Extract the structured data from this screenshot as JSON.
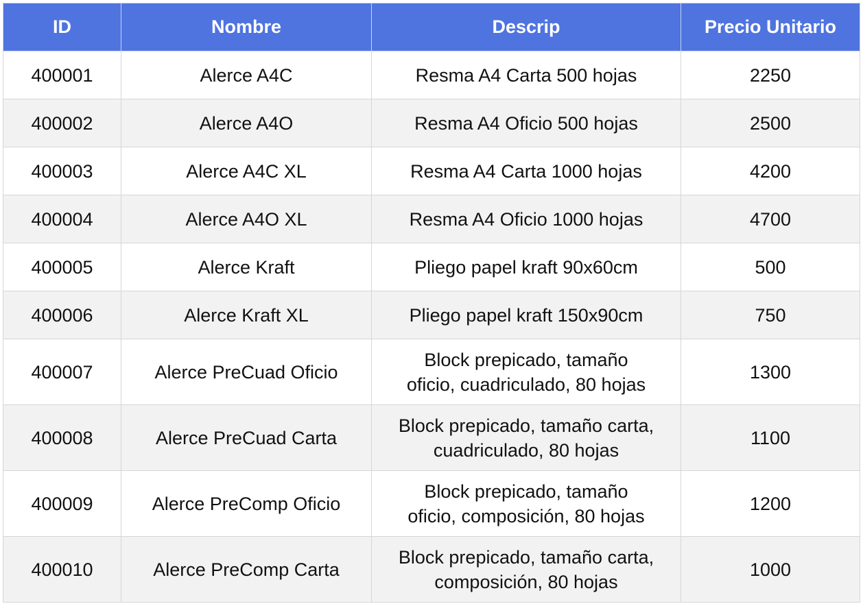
{
  "table": {
    "headers": [
      "ID",
      "Nombre",
      "Descrip",
      "Precio Unitario"
    ],
    "rows": [
      {
        "id": "400001",
        "nombre": "Alerce A4C",
        "descrip": "Resma A4 Carta 500 hojas",
        "precio": "2250"
      },
      {
        "id": "400002",
        "nombre": "Alerce A4O",
        "descrip": "Resma A4 Oficio 500 hojas",
        "precio": "2500"
      },
      {
        "id": "400003",
        "nombre": "Alerce A4C XL",
        "descrip": "Resma A4 Carta 1000 hojas",
        "precio": "4200"
      },
      {
        "id": "400004",
        "nombre": "Alerce A4O XL",
        "descrip": "Resma A4 Oficio 1000 hojas",
        "precio": "4700"
      },
      {
        "id": "400005",
        "nombre": "Alerce Kraft",
        "descrip": "Pliego papel kraft 90x60cm",
        "precio": "500"
      },
      {
        "id": "400006",
        "nombre": "Alerce Kraft XL",
        "descrip": "Pliego papel kraft 150x90cm",
        "precio": "750"
      },
      {
        "id": "400007",
        "nombre": "Alerce PreCuad Oficio",
        "descrip_lines": [
          "Block prepicado, tamaño",
          "oficio, cuadriculado, 80 hojas"
        ],
        "precio": "1300"
      },
      {
        "id": "400008",
        "nombre": "Alerce PreCuad Carta",
        "descrip_lines": [
          "Block prepicado, tamaño carta,",
          "cuadriculado, 80 hojas"
        ],
        "precio": "1100"
      },
      {
        "id": "400009",
        "nombre": "Alerce PreComp Oficio",
        "descrip_lines": [
          "Block prepicado, tamaño",
          "oficio, composición, 80 hojas"
        ],
        "precio": "1200"
      },
      {
        "id": "400010",
        "nombre": "Alerce PreComp Carta",
        "descrip_lines": [
          "Block prepicado, tamaño carta,",
          "composición, 80 hojas"
        ],
        "precio": "1000"
      }
    ]
  },
  "colors": {
    "header_bg": "#4f74e0",
    "header_text": "#ffffff",
    "row_alt_bg": "#f2f2f2",
    "border": "#d6d6d6"
  }
}
